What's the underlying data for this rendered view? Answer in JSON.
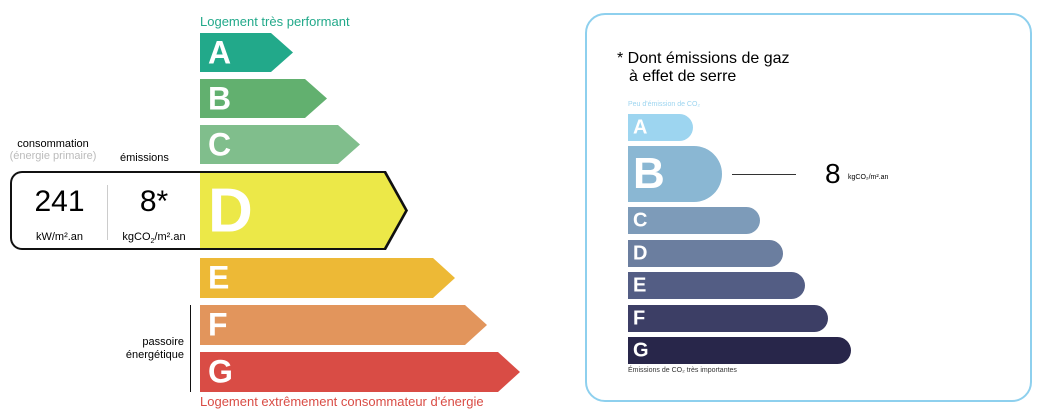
{
  "dpe": {
    "top_label": "Logement très performant",
    "bottom_label": "Logement extrêmement consommateur d'énergie",
    "consumption_title": "consommation",
    "consumption_subtitle": "(énergie primaire)",
    "emissions_title": "émissions",
    "consumption_value": "241",
    "consumption_unit": "kW/m².an",
    "emissions_value": "8*",
    "emissions_unit_pre": "kgCO",
    "emissions_unit_sub": "2",
    "emissions_unit_post": "/m².an",
    "passoire_label_1": "passoire",
    "passoire_label_2": "énergétique",
    "current_class": "D",
    "classes": [
      {
        "letter": "A",
        "color": "#22a98a"
      },
      {
        "letter": "B",
        "color": "#62b06f"
      },
      {
        "letter": "C",
        "color": "#80be8c"
      },
      {
        "letter": "D",
        "color": "#ece848"
      },
      {
        "letter": "E",
        "color": "#edb936"
      },
      {
        "letter": "F",
        "color": "#e2955c"
      },
      {
        "letter": "G",
        "color": "#d94c45"
      }
    ]
  },
  "ges": {
    "title_1": "* Dont émissions de gaz",
    "title_2": "à effet de serre",
    "top_label": "Peu d'émission de CO₂",
    "bottom_label": "Émissions de CO₂ très importantes",
    "value": "8",
    "unit": "kgCO₂/m².an",
    "current_class": "B",
    "classes": [
      {
        "letter": "A",
        "color": "#9dd5f0"
      },
      {
        "letter": "B",
        "color": "#8ab7d3"
      },
      {
        "letter": "C",
        "color": "#7d9bb9"
      },
      {
        "letter": "D",
        "color": "#6b7e9f"
      },
      {
        "letter": "E",
        "color": "#535d84"
      },
      {
        "letter": "F",
        "color": "#3c3e65"
      },
      {
        "letter": "G",
        "color": "#28264a"
      }
    ]
  }
}
